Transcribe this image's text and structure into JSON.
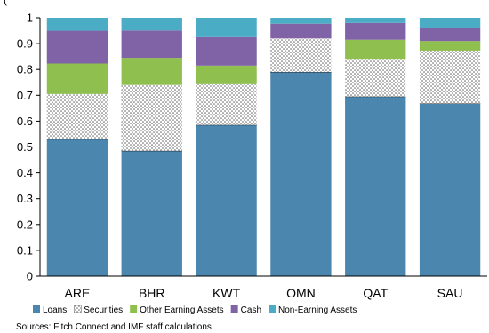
{
  "chart_data": {
    "type": "bar",
    "stacked": true,
    "title": "",
    "xlabel": "",
    "ylabel": "",
    "ylim": [
      0,
      1
    ],
    "yticks": [
      "0",
      "0.1",
      "0.2",
      "0.3",
      "0.4",
      "0.5",
      "0.6",
      "0.7",
      "0.8",
      "0.9",
      "1"
    ],
    "categories": [
      "ARE",
      "BHR",
      "KWT",
      "OMN",
      "QAT",
      "SAU"
    ],
    "series": [
      {
        "name": "Loans",
        "color": "#4a86ad",
        "pattern": false,
        "values": [
          0.53,
          0.485,
          0.585,
          0.79,
          0.695,
          0.668
        ]
      },
      {
        "name": "Securities",
        "color": "#ffffff",
        "pattern": true,
        "values": [
          0.175,
          0.255,
          0.158,
          0.13,
          0.143,
          0.205
        ]
      },
      {
        "name": "Other Earning Assets",
        "color": "#8fbf4e",
        "pattern": false,
        "values": [
          0.118,
          0.105,
          0.072,
          0.0,
          0.077,
          0.037
        ]
      },
      {
        "name": "Cash",
        "color": "#8063a6",
        "pattern": false,
        "values": [
          0.127,
          0.106,
          0.11,
          0.057,
          0.065,
          0.05
        ]
      },
      {
        "name": "Non-Earning Assets",
        "color": "#4bacc6",
        "pattern": false,
        "values": [
          0.05,
          0.049,
          0.075,
          0.023,
          0.02,
          0.04
        ]
      }
    ],
    "legend": {
      "position": "bottom"
    },
    "grid": false
  },
  "header_partial": "(",
  "source_note": "Sources: Fitch Connect and IMF staff calculations"
}
